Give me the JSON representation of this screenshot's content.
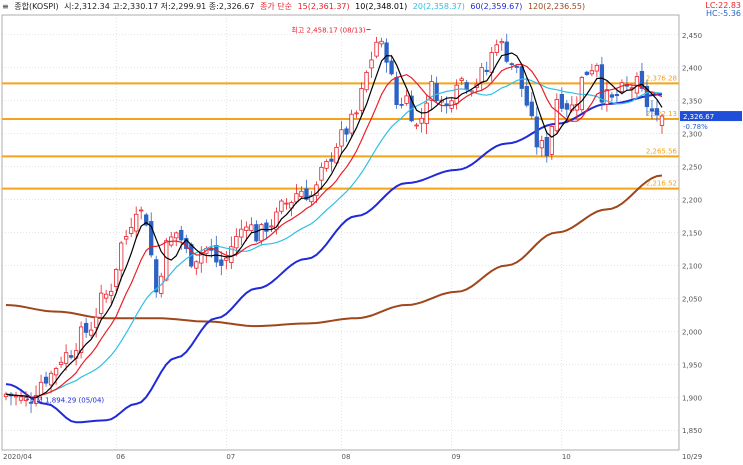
{
  "legend": {
    "index_label": "종합(KOSPI)",
    "ohlc_text": "시:2,312.34 고:2,330.17 저:2,299.91 종:2,326.67",
    "ma_label": "종가 단순",
    "ma15": "15(2,361.37)",
    "ma10": "10(2,348.01)",
    "ma20": "20(2,358.37)",
    "ma60": "60(2,359.67)",
    "ma120": "120(2,236.55)"
  },
  "corner": {
    "lc": "LC:22.83",
    "hc": "HC:-5.36"
  },
  "annotations": {
    "high": "최고 2,458.17 (08/13)",
    "low": "최저 1,894.29 (05/04)"
  },
  "current": {
    "price": "2,326.67",
    "change": "-0.78%"
  },
  "hlines": [
    {
      "value": 2376.28,
      "label": "2,376.28"
    },
    {
      "value": 2322.13,
      "label": "2,322.13"
    },
    {
      "value": 2265.56,
      "label": "2,265.56"
    },
    {
      "value": 2216.52,
      "label": "2,216.52"
    }
  ],
  "colors": {
    "up": "#e8202a",
    "down": "#2b62c4",
    "hline": "#f5a31a",
    "ma5": "#000000",
    "ma10": "#e8202a",
    "ma20": "#2fc0e4",
    "ma60": "#1f2ad8",
    "ma120": "#a0461c",
    "grid": "#c8c8c8",
    "axis_text": "#555555",
    "price_tag": "#1f4fd8"
  },
  "chart_data": {
    "type": "candlestick",
    "title": "종합(KOSPI)",
    "ylim": [
      1820,
      2480
    ],
    "y_ticks": [
      1850,
      1900,
      1950,
      2000,
      2050,
      2100,
      2150,
      2200,
      2250,
      2300,
      2350,
      2400,
      2450
    ],
    "y_tick_labels": [
      "1,850",
      "1,900",
      "1,950",
      "2,000",
      "2,050",
      "2,100",
      "2,150",
      "2,200",
      "2,250",
      "2,300",
      "2,350",
      "2,400",
      "2,450"
    ],
    "x_labels": [
      {
        "index": 0,
        "label": "2020/04"
      },
      {
        "index": 22,
        "label": "06"
      },
      {
        "index": 44,
        "label": "07"
      },
      {
        "index": 67,
        "label": "08"
      },
      {
        "index": 89,
        "label": "09"
      },
      {
        "index": 111,
        "label": "10"
      },
      {
        "index": 135,
        "label": "10/29"
      }
    ],
    "n_days": 132,
    "key_closes": [
      [
        0,
        1905
      ],
      [
        4,
        1895
      ],
      [
        8,
        1930
      ],
      [
        12,
        1965
      ],
      [
        16,
        2000
      ],
      [
        20,
        2055
      ],
      [
        24,
        2145
      ],
      [
        26,
        2190
      ],
      [
        28,
        2170
      ],
      [
        30,
        2060
      ],
      [
        32,
        2130
      ],
      [
        34,
        2150
      ],
      [
        37,
        2110
      ],
      [
        40,
        2125
      ],
      [
        43,
        2100
      ],
      [
        46,
        2140
      ],
      [
        48,
        2170
      ],
      [
        50,
        2145
      ],
      [
        53,
        2165
      ],
      [
        56,
        2195
      ],
      [
        59,
        2215
      ],
      [
        61,
        2205
      ],
      [
        64,
        2250
      ],
      [
        66,
        2285
      ],
      [
        68,
        2305
      ],
      [
        70,
        2330
      ],
      [
        72,
        2390
      ],
      [
        74,
        2440
      ],
      [
        76,
        2420
      ],
      [
        78,
        2345
      ],
      [
        80,
        2355
      ],
      [
        82,
        2310
      ],
      [
        85,
        2370
      ],
      [
        88,
        2340
      ],
      [
        90,
        2385
      ],
      [
        93,
        2375
      ],
      [
        96,
        2395
      ],
      [
        98,
        2445
      ],
      [
        100,
        2420
      ],
      [
        102,
        2395
      ],
      [
        104,
        2345
      ],
      [
        106,
        2285
      ],
      [
        108,
        2275
      ],
      [
        110,
        2355
      ],
      [
        113,
        2340
      ],
      [
        116,
        2395
      ],
      [
        118,
        2410
      ],
      [
        119,
        2360
      ],
      [
        121,
        2350
      ],
      [
        123,
        2365
      ],
      [
        126,
        2375
      ],
      [
        128,
        2345
      ],
      [
        130,
        2320
      ],
      [
        131,
        2326.67
      ]
    ],
    "key_ma120": [
      [
        0,
        2040
      ],
      [
        10,
        2030
      ],
      [
        20,
        2020
      ],
      [
        30,
        2020
      ],
      [
        40,
        2015
      ],
      [
        50,
        2008
      ],
      [
        60,
        2012
      ],
      [
        70,
        2020
      ],
      [
        80,
        2040
      ],
      [
        90,
        2060
      ],
      [
        100,
        2100
      ],
      [
        110,
        2150
      ],
      [
        120,
        2185
      ],
      [
        131,
        2236.55
      ]
    ],
    "key_ma60": [
      [
        0,
        1920
      ],
      [
        8,
        1890
      ],
      [
        14,
        1862
      ],
      [
        20,
        1865
      ],
      [
        26,
        1890
      ],
      [
        34,
        1960
      ],
      [
        42,
        2020
      ],
      [
        50,
        2065
      ],
      [
        60,
        2110
      ],
      [
        70,
        2175
      ],
      [
        80,
        2225
      ],
      [
        90,
        2245
      ],
      [
        100,
        2285
      ],
      [
        110,
        2315
      ],
      [
        120,
        2345
      ],
      [
        131,
        2359.67
      ]
    ],
    "series": [
      {
        "name": "5"
      },
      {
        "name": "10"
      },
      {
        "name": "20"
      },
      {
        "name": "60"
      },
      {
        "name": "120"
      }
    ],
    "grid": true
  }
}
